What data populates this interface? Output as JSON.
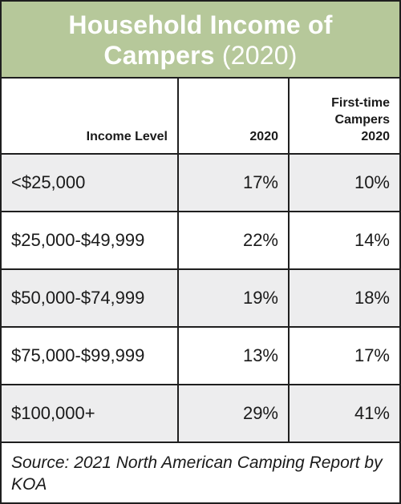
{
  "title": {
    "line1": "Household Income of",
    "line2_bold": "Campers",
    "line2_year": "(2020)"
  },
  "headers": {
    "income": "Income Level",
    "col_2020": "2020",
    "first_time_l1": "First-time",
    "first_time_l2": "Campers",
    "first_time_l3": "2020"
  },
  "source": "Source: 2021 North American Camping Report by KOA",
  "colors": {
    "title_band": "#b6c89a",
    "row_shade": "#ededee",
    "border": "#1f1f1f"
  },
  "chart_data": {
    "type": "table",
    "title": "Household Income of Campers (2020)",
    "columns": [
      "Income Level",
      "2020",
      "First-time Campers 2020"
    ],
    "categories": [
      "<$25,000",
      "$25,000-$49,999",
      "$50,000-$74,999",
      "$75,000-$99,999",
      "$100,000+"
    ],
    "series": [
      {
        "name": "2020",
        "values": [
          17,
          22,
          19,
          13,
          29
        ]
      },
      {
        "name": "First-time Campers 2020",
        "values": [
          10,
          14,
          18,
          17,
          41
        ]
      }
    ],
    "rows": [
      {
        "income": "<$25,000",
        "y2020": "17%",
        "first": "10%"
      },
      {
        "income": "$25,000-$49,999",
        "y2020": "22%",
        "first": "14%"
      },
      {
        "income": "$50,000-$74,999",
        "y2020": "19%",
        "first": "18%"
      },
      {
        "income": "$75,000-$99,999",
        "y2020": "13%",
        "first": "17%"
      },
      {
        "income": "$100,000+",
        "y2020": "29%",
        "first": "41%"
      }
    ]
  }
}
